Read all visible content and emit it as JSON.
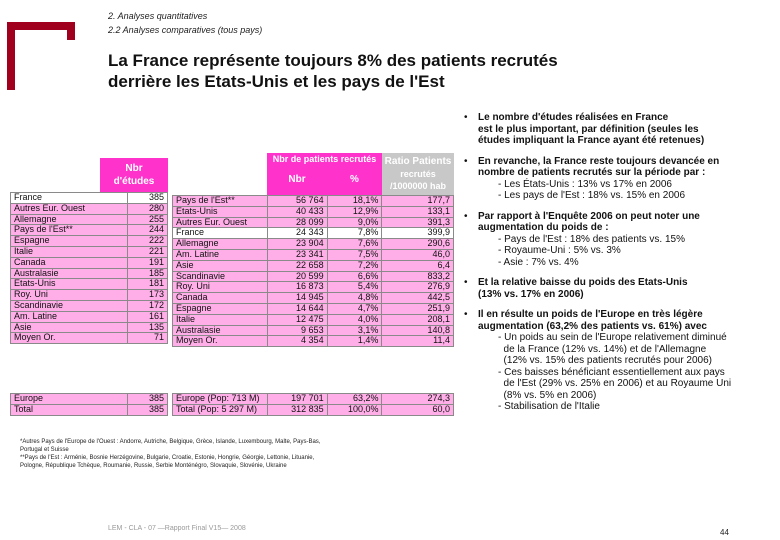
{
  "breadcrumb": {
    "line1": "2. Analyses quantitatives",
    "line2": "2.2 Analyses comparatives (tous pays)"
  },
  "title": {
    "line1": "La France représente toujours 8% des patients recrutés",
    "line2": "derrière les Etats-Unis et les pays de l'Est"
  },
  "colors": {
    "accent": "#a0001e",
    "pink": "#ffaee8",
    "magenta": "#ff33cc"
  },
  "left_table": {
    "header_line1": "Nbr",
    "header_line2": "d'études",
    "rows": [
      {
        "label": "France",
        "value": "385"
      },
      {
        "label": "Autres Eur. Ouest",
        "value": "280"
      },
      {
        "label": "Allemagne",
        "value": "255"
      },
      {
        "label": "Pays de l'Est**",
        "value": "244"
      },
      {
        "label": "Espagne",
        "value": "222"
      },
      {
        "label": "Italie",
        "value": "221"
      },
      {
        "label": "Canada",
        "value": "191"
      },
      {
        "label": "Australasie",
        "value": "185"
      },
      {
        "label": "Etats-Unis",
        "value": "181"
      },
      {
        "label": "Roy. Uni",
        "value": "173"
      },
      {
        "label": "Scandinavie",
        "value": "172"
      },
      {
        "label": "Am. Latine",
        "value": "161"
      },
      {
        "label": "Asie",
        "value": "135"
      },
      {
        "label": "Moyen Or.",
        "value": "71"
      }
    ],
    "totals": [
      {
        "label": "Europe",
        "value": "385"
      },
      {
        "label": "Total",
        "value": "385"
      }
    ]
  },
  "right_table": {
    "header_group": "Nbr de patients recrutés",
    "header_nbr": "Nbr",
    "header_pct": "%",
    "header_ratio_line1": "Ratio Patients",
    "header_ratio_line2": "recrutés",
    "header_ratio_line3": "/1000000 hab",
    "rows": [
      {
        "label": "Pays de l'Est**",
        "nbr": "56 764",
        "pct": "18,1%",
        "ratio": "177,7"
      },
      {
        "label": "Etats-Unis",
        "nbr": "40 433",
        "pct": "12,9%",
        "ratio": "133,1"
      },
      {
        "label": "Autres Eur. Ouest",
        "nbr": "28 099",
        "pct": "9,0%",
        "ratio": "391,3"
      },
      {
        "label": "France",
        "nbr": "24 343",
        "pct": "7,8%",
        "ratio": "399,9"
      },
      {
        "label": "Allemagne",
        "nbr": "23 904",
        "pct": "7,6%",
        "ratio": "290,6"
      },
      {
        "label": "Am. Latine",
        "nbr": "23 341",
        "pct": "7,5%",
        "ratio": "46,0"
      },
      {
        "label": "Asie",
        "nbr": "22 658",
        "pct": "7,2%",
        "ratio": "6,4"
      },
      {
        "label": "Scandinavie",
        "nbr": "20 599",
        "pct": "6,6%",
        "ratio": "833,2"
      },
      {
        "label": "Roy. Uni",
        "nbr": "16 873",
        "pct": "5,4%",
        "ratio": "276,9"
      },
      {
        "label": "Canada",
        "nbr": "14 945",
        "pct": "4,8%",
        "ratio": "442,5"
      },
      {
        "label": "Espagne",
        "nbr": "14 644",
        "pct": "4,7%",
        "ratio": "251,9"
      },
      {
        "label": "Italie",
        "nbr": "12 475",
        "pct": "4,0%",
        "ratio": "208,1"
      },
      {
        "label": "Australasie",
        "nbr": "9 653",
        "pct": "3,1%",
        "ratio": "140,8"
      },
      {
        "label": "Moyen Or.",
        "nbr": "4 354",
        "pct": "1,4%",
        "ratio": "11,4"
      }
    ],
    "totals": [
      {
        "label": "Europe (Pop: 713 M)",
        "nbr": "197 701",
        "pct": "63,2%",
        "ratio": "274,3"
      },
      {
        "label": "Total (Pop: 5 297 M)",
        "nbr": "312 835",
        "pct": "100,0%",
        "ratio": "60,0"
      }
    ]
  },
  "footnotes": {
    "line1": "*Autres Pays de l'Europe de l'Ouest : Andorre, Autriche, Belgique, Grèce, Islande, Luxembourg, Malte, Pays-Bas,",
    "line2": "Portugal et Suisse",
    "line3": "**Pays de l'Est : Arménie, Bosnie Herzégovine, Bulgarie, Croatie, Estonie, Hongrie, Géorgie, Lettonie, Lituanie,",
    "line4": "Pologne, République Tchèque, Roumanie, Russie, Serbie Monténégro, Slovaquie, Slovénie, Ukraine"
  },
  "bullets": [
    {
      "lines": [
        "Le nombre d'études réalisées en France",
        "est le plus important, par définition (seules les",
        "études impliquant la France ayant été retenues)"
      ],
      "subs": []
    },
    {
      "lines": [
        "En revanche, la France reste toujours devancée en",
        "nombre de patients recrutés sur la période par :"
      ],
      "subs": [
        "- Les États-Unis : 13% vs 17% en 2006",
        "- Les pays de l'Est : 18% vs. 15% en 2006"
      ]
    },
    {
      "lines": [
        "Par rapport à l'Enquête 2006 on peut noter une",
        "augmentation du poids de :"
      ],
      "subs": [
        "- Pays de l'Est : 18% des patients vs. 15%",
        "- Royaume-Uni : 5% vs. 3%",
        "- Asie : 7% vs. 4%"
      ]
    },
    {
      "lines": [
        "Et la relative baisse du poids des Etats-Unis",
        "(13% vs. 17% en 2006)"
      ],
      "subs": []
    },
    {
      "lines": [
        "Il en résulte un poids de l'Europe en très légère",
        "augmentation (63,2% des patients vs. 61%) avec"
      ],
      "subs": [
        "- Un poids au sein de l'Europe relativement diminué",
        "  de la France (12% vs. 14%) et de l'Allemagne",
        "  (12% vs. 15% des patients recrutés pour 2006)",
        "- Ces baisses bénéficiant essentiellement aux pays",
        "  de l'Est (29% vs. 25% en 2006) et au Royaume Uni",
        "  (8% vs. 5% en 2006)",
        "- Stabilisation de l'Italie"
      ]
    }
  ],
  "footer": "LEM - CLA - 07 —Rapport Final V15— 2008",
  "page_number": "44"
}
